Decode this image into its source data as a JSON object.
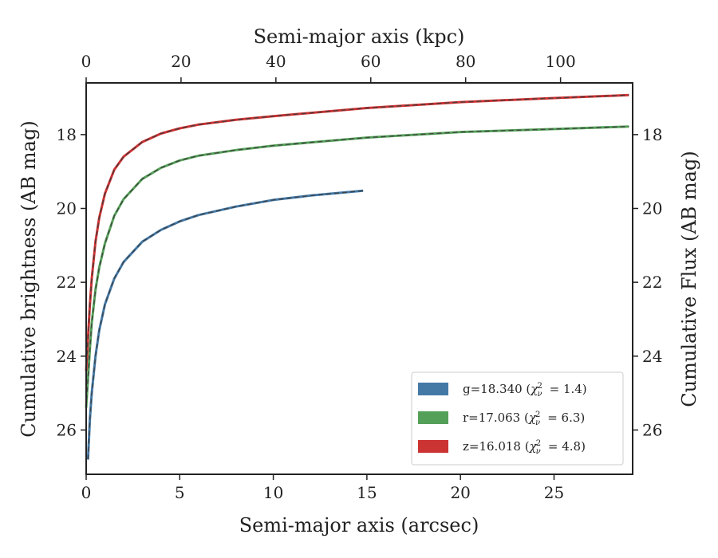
{
  "chart_data": {
    "type": "line",
    "xlabel": "Semi-major axis (arcsec)",
    "x2label": "Semi-major axis (kpc)",
    "ylabel": "Cumulative brightness (AB mag)",
    "y2label": "Cumulative Flux (AB mag)",
    "xlim": [
      0,
      29.2
    ],
    "x2lim": [
      0,
      115.2
    ],
    "ylim": [
      27.2,
      16.6
    ],
    "y_inverted": true,
    "xticks": [
      "0",
      "5",
      "10",
      "15",
      "20",
      "25"
    ],
    "x2ticks": [
      "0",
      "20",
      "40",
      "60",
      "80",
      "100"
    ],
    "yticks": [
      "18",
      "20",
      "22",
      "24",
      "26"
    ],
    "grid": false,
    "legend_position": "lower-right",
    "model_line_style": "dashed",
    "series": [
      {
        "name": "g=18.340 (χ²ν = 1.4)",
        "legend_text": "g=18.340 (",
        "legend_chi": "1.4",
        "color": "#4479a6",
        "x": [
          0.1,
          0.2,
          0.3,
          0.5,
          0.7,
          1.0,
          1.5,
          2.0,
          3.0,
          4.0,
          5.0,
          6.0,
          8.0,
          10.0,
          12.0,
          14.8
        ],
        "y": [
          26.8,
          25.7,
          25.0,
          24.0,
          23.3,
          22.6,
          21.9,
          21.45,
          20.9,
          20.58,
          20.35,
          20.18,
          19.95,
          19.77,
          19.65,
          19.52
        ]
      },
      {
        "name": "r=17.063 (χ²ν = 6.3)",
        "legend_text": "r=17.063 (",
        "legend_chi": "6.3",
        "color": "#55a059",
        "x": [
          0.0,
          0.1,
          0.2,
          0.3,
          0.5,
          0.7,
          1.0,
          1.5,
          2.0,
          3.0,
          4.0,
          5.0,
          6.0,
          8.0,
          10.0,
          15.0,
          20.0,
          25.0,
          29.0
        ],
        "y": [
          25.4,
          24.6,
          23.8,
          23.1,
          22.2,
          21.6,
          20.95,
          20.2,
          19.75,
          19.2,
          18.9,
          18.7,
          18.57,
          18.42,
          18.3,
          18.08,
          17.93,
          17.85,
          17.78
        ]
      },
      {
        "name": "z=16.018 (χ²ν = 4.8)",
        "legend_text": "z=16.018 (",
        "legend_chi": "4.8",
        "color": "#cc3333",
        "x": [
          0.0,
          0.1,
          0.2,
          0.3,
          0.5,
          0.7,
          1.0,
          1.5,
          2.0,
          3.0,
          4.0,
          5.0,
          6.0,
          8.0,
          10.0,
          15.0,
          20.0,
          25.0,
          29.0
        ],
        "y": [
          24.4,
          23.5,
          22.6,
          21.9,
          20.9,
          20.25,
          19.6,
          18.95,
          18.6,
          18.2,
          17.97,
          17.83,
          17.73,
          17.6,
          17.5,
          17.28,
          17.12,
          17.01,
          16.93
        ]
      }
    ]
  }
}
